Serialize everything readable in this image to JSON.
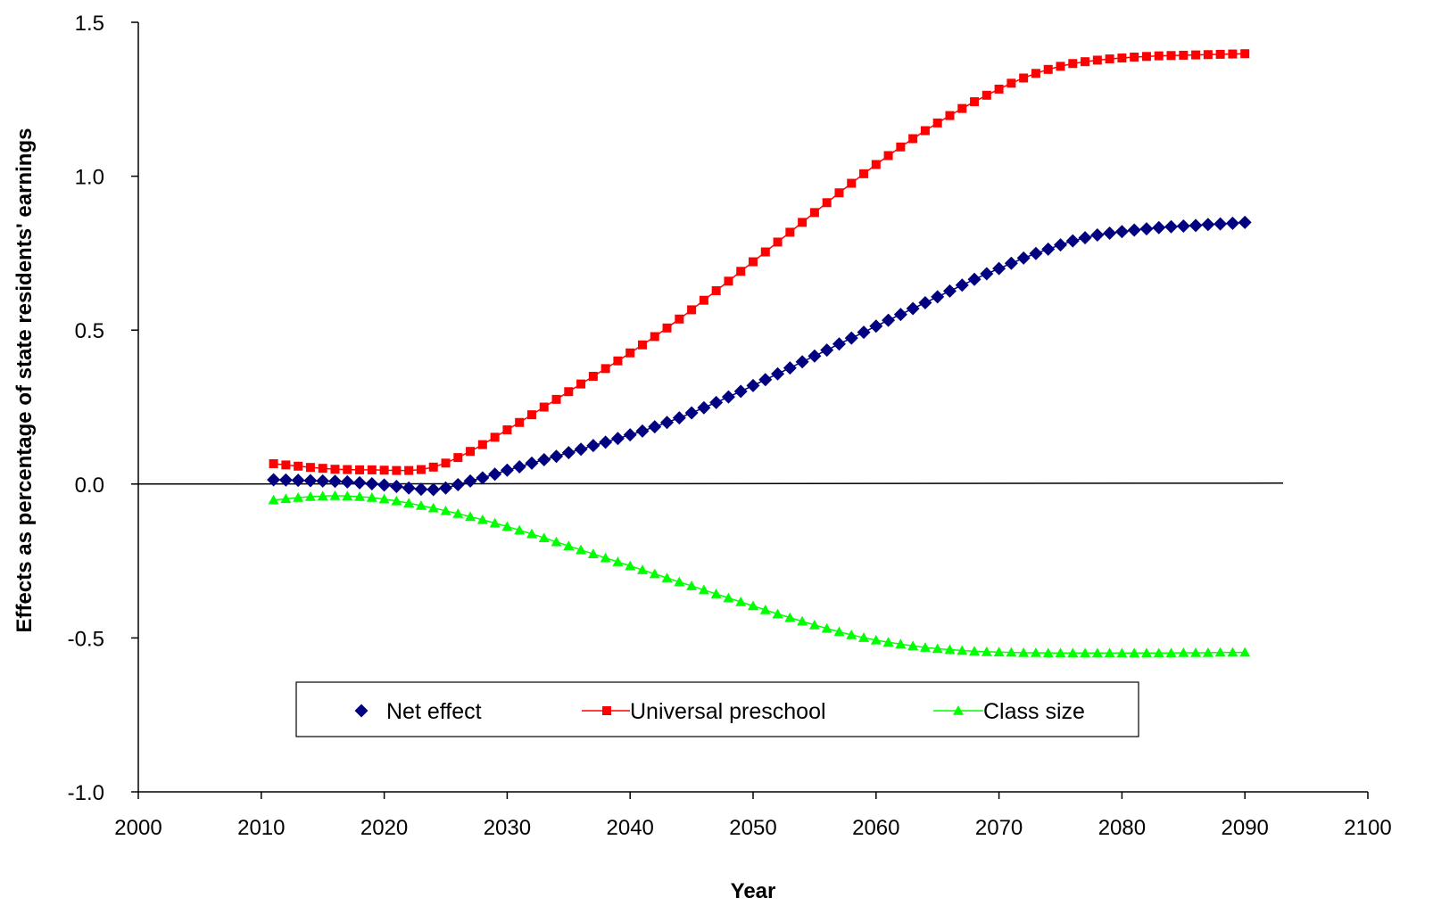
{
  "chart_data": {
    "type": "line",
    "title": "",
    "xlabel": "Year",
    "ylabel": "Effects as percentage of state residents' earnings",
    "xlim": [
      2000,
      2100
    ],
    "ylim": [
      -1.0,
      1.5
    ],
    "x_ticks": [
      "2000",
      "2010",
      "2020",
      "2030",
      "2040",
      "2050",
      "2060",
      "2070",
      "2080",
      "2090",
      "2100"
    ],
    "y_ticks": [
      "-1.0",
      "-0.5",
      "0.0",
      "0.5",
      "1.0",
      "1.5"
    ],
    "grid": false,
    "legend_position": "bottom-center",
    "zero_line": true,
    "x": [
      2011,
      2012,
      2013,
      2014,
      2015,
      2016,
      2017,
      2018,
      2019,
      2020,
      2021,
      2022,
      2023,
      2024,
      2025,
      2026,
      2027,
      2028,
      2029,
      2030,
      2031,
      2032,
      2033,
      2034,
      2035,
      2036,
      2037,
      2038,
      2039,
      2040,
      2041,
      2042,
      2043,
      2044,
      2045,
      2046,
      2047,
      2048,
      2049,
      2050,
      2051,
      2052,
      2053,
      2054,
      2055,
      2056,
      2057,
      2058,
      2059,
      2060,
      2061,
      2062,
      2063,
      2064,
      2065,
      2066,
      2067,
      2068,
      2069,
      2070,
      2071,
      2072,
      2073,
      2074,
      2075,
      2076,
      2077,
      2078,
      2079,
      2080,
      2081,
      2082,
      2083,
      2084,
      2085,
      2086,
      2087,
      2088,
      2089,
      2090
    ],
    "series": [
      {
        "name": "Net effect",
        "color": "#000080",
        "marker": "diamond",
        "values": [
          0.014,
          0.013,
          0.012,
          0.011,
          0.01,
          0.009,
          0.007,
          0.004,
          0.001,
          -0.003,
          -0.008,
          -0.013,
          -0.017,
          -0.018,
          -0.013,
          -0.002,
          0.01,
          0.02,
          0.032,
          0.045,
          0.056,
          0.068,
          0.079,
          0.09,
          0.102,
          0.113,
          0.125,
          0.136,
          0.148,
          0.16,
          0.172,
          0.186,
          0.2,
          0.215,
          0.231,
          0.248,
          0.265,
          0.283,
          0.301,
          0.32,
          0.339,
          0.358,
          0.377,
          0.397,
          0.416,
          0.435,
          0.455,
          0.474,
          0.493,
          0.513,
          0.532,
          0.551,
          0.57,
          0.589,
          0.608,
          0.627,
          0.646,
          0.665,
          0.683,
          0.7,
          0.717,
          0.734,
          0.749,
          0.763,
          0.777,
          0.79,
          0.8,
          0.809,
          0.815,
          0.82,
          0.825,
          0.829,
          0.833,
          0.836,
          0.838,
          0.84,
          0.843,
          0.845,
          0.847,
          0.85
        ]
      },
      {
        "name": "Universal preschool",
        "color": "#ff0000",
        "marker": "square",
        "values": [
          0.066,
          0.062,
          0.058,
          0.054,
          0.051,
          0.048,
          0.047,
          0.046,
          0.046,
          0.045,
          0.044,
          0.044,
          0.047,
          0.055,
          0.068,
          0.086,
          0.106,
          0.128,
          0.152,
          0.176,
          0.2,
          0.225,
          0.25,
          0.275,
          0.3,
          0.325,
          0.35,
          0.375,
          0.4,
          0.426,
          0.452,
          0.479,
          0.507,
          0.536,
          0.566,
          0.597,
          0.628,
          0.659,
          0.691,
          0.722,
          0.754,
          0.786,
          0.818,
          0.85,
          0.882,
          0.914,
          0.946,
          0.977,
          1.008,
          1.038,
          1.067,
          1.095,
          1.122,
          1.148,
          1.173,
          1.197,
          1.22,
          1.242,
          1.263,
          1.283,
          1.302,
          1.319,
          1.334,
          1.347,
          1.357,
          1.366,
          1.372,
          1.377,
          1.381,
          1.384,
          1.387,
          1.389,
          1.391,
          1.392,
          1.393,
          1.394,
          1.395,
          1.396,
          1.397,
          1.398
        ]
      },
      {
        "name": "Class size",
        "color": "#00ff00",
        "marker": "triangle",
        "values": [
          -0.052,
          -0.048,
          -0.044,
          -0.041,
          -0.039,
          -0.038,
          -0.039,
          -0.041,
          -0.044,
          -0.049,
          -0.055,
          -0.062,
          -0.07,
          -0.078,
          -0.087,
          -0.096,
          -0.106,
          -0.116,
          -0.127,
          -0.138,
          -0.15,
          -0.162,
          -0.175,
          -0.188,
          -0.201,
          -0.214,
          -0.227,
          -0.24,
          -0.253,
          -0.266,
          -0.279,
          -0.292,
          -0.305,
          -0.318,
          -0.331,
          -0.344,
          -0.357,
          -0.37,
          -0.383,
          -0.396,
          -0.409,
          -0.422,
          -0.434,
          -0.446,
          -0.458,
          -0.469,
          -0.48,
          -0.49,
          -0.499,
          -0.507,
          -0.514,
          -0.52,
          -0.526,
          -0.531,
          -0.535,
          -0.538,
          -0.541,
          -0.543,
          -0.545,
          -0.546,
          -0.547,
          -0.548,
          -0.548,
          -0.549,
          -0.549,
          -0.549,
          -0.549,
          -0.549,
          -0.549,
          -0.549,
          -0.549,
          -0.549,
          -0.549,
          -0.549,
          -0.548,
          -0.548,
          -0.548,
          -0.547,
          -0.547,
          -0.547
        ]
      }
    ]
  }
}
